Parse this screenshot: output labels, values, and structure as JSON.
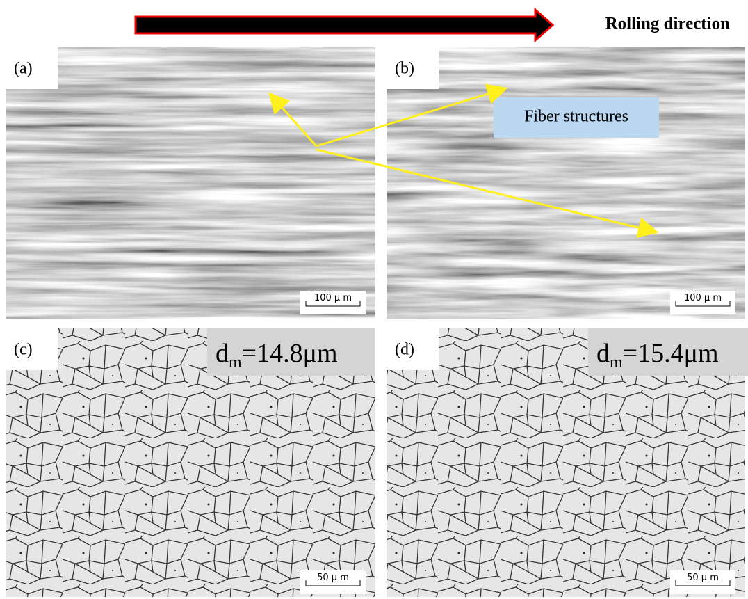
{
  "header": {
    "direction_label": "Rolling direction"
  },
  "panels": [
    {
      "label": "(a)",
      "scale_bar": "100 μ m"
    },
    {
      "label": "(b)",
      "scale_bar": "100 μ m",
      "annotation": "Fiber structures"
    },
    {
      "label": "(c)",
      "scale_bar": "50 μ m",
      "grain_size": {
        "symbol": "d",
        "subscript": "m",
        "value": "=14.8μm"
      }
    },
    {
      "label": "(d)",
      "scale_bar": "50 μ m",
      "grain_size": {
        "symbol": "d",
        "subscript": "m",
        "value": "=15.4μm"
      }
    }
  ]
}
